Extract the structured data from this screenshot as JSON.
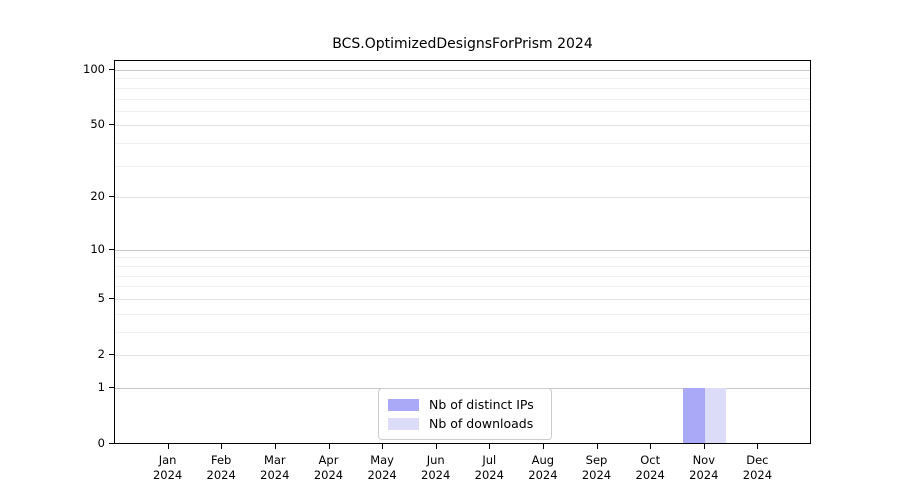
{
  "chart_data": {
    "type": "bar",
    "title": "BCS.OptimizedDesignsForPrism 2024",
    "categories": [
      "Jan",
      "Feb",
      "Mar",
      "Apr",
      "May",
      "Jun",
      "Jul",
      "Aug",
      "Sep",
      "Oct",
      "Nov",
      "Dec"
    ],
    "x_tick_label_line2": "2024",
    "series": [
      {
        "name": "Nb of distinct IPs",
        "color": "#a9a9f7",
        "values": [
          0,
          0,
          0,
          0,
          0,
          0,
          0,
          0,
          0,
          0,
          1,
          0
        ]
      },
      {
        "name": "Nb of downloads",
        "color": "#dcdcf8",
        "values": [
          0,
          0,
          0,
          0,
          0,
          0,
          0,
          0,
          0,
          0,
          1,
          0
        ]
      }
    ],
    "yaxis": {
      "scale": "log1p",
      "ticks": [
        0,
        1,
        2,
        5,
        10,
        20,
        50,
        100
      ],
      "minor_gridlines": [
        3,
        4,
        6,
        7,
        8,
        9,
        30,
        40,
        60,
        70,
        80,
        90
      ],
      "range_top": 110
    },
    "legend": {
      "position": "bottom-center"
    },
    "grid": true,
    "colors": {
      "grid_decade": "#c6c6c6",
      "grid_mid": "#e2e2e2",
      "grid_minor": "#efefef",
      "axis": "#000000",
      "text": "#000000"
    }
  }
}
